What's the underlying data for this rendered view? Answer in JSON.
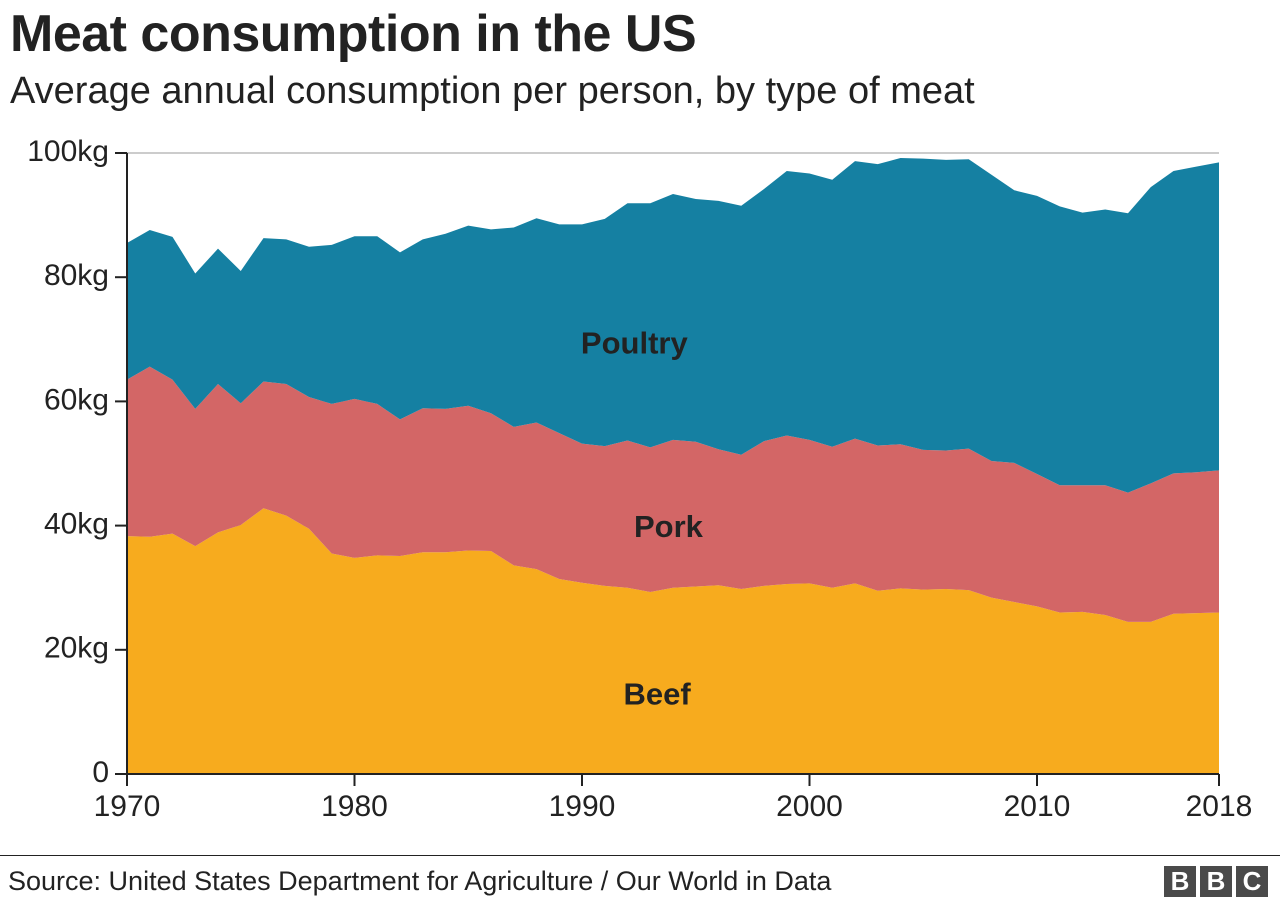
{
  "title": "Meat consumption in the US",
  "subtitle": "Average annual consumption per person, by type of meat",
  "source": "Source: United States Department for Agriculture / Our World in Data",
  "logo": [
    "B",
    "B",
    "C"
  ],
  "colors": {
    "beef": "#f7ab1e",
    "pork": "#d36666",
    "poultry": "#1580a2",
    "grid": "#cccccc",
    "axis": "#222222",
    "text": "#222222"
  },
  "chart_data": {
    "type": "area",
    "stacked": true,
    "title": "Meat consumption in the US",
    "subtitle": "Average annual consumption per person, by type of meat",
    "ylim": [
      0,
      100
    ],
    "y_ticks": [
      0,
      20,
      40,
      60,
      80,
      100
    ],
    "y_tick_labels": [
      "0",
      "20kg",
      "40kg",
      "60kg",
      "80kg",
      "100kg"
    ],
    "x_ticks": [
      1970,
      1980,
      1990,
      2000,
      2010,
      2018
    ],
    "x_tick_labels": [
      "1970",
      "1980",
      "1990",
      "2000",
      "2010",
      "2018"
    ],
    "x": [
      1970,
      1971,
      1972,
      1973,
      1974,
      1975,
      1976,
      1977,
      1978,
      1979,
      1980,
      1981,
      1982,
      1983,
      1984,
      1985,
      1986,
      1987,
      1988,
      1989,
      1990,
      1991,
      1992,
      1993,
      1994,
      1995,
      1996,
      1997,
      1998,
      1999,
      2000,
      2001,
      2002,
      2003,
      2004,
      2005,
      2006,
      2007,
      2008,
      2009,
      2010,
      2011,
      2012,
      2013,
      2014,
      2015,
      2016,
      2017,
      2018
    ],
    "series": [
      {
        "name": "Beef",
        "key": "beef",
        "values": [
          38.3,
          38.2,
          38.7,
          36.7,
          38.9,
          40.1,
          42.8,
          41.6,
          39.5,
          35.5,
          34.8,
          35.2,
          35.1,
          35.7,
          35.7,
          36.0,
          35.9,
          33.6,
          33.0,
          31.4,
          30.8,
          30.3,
          30.0,
          29.3,
          30.0,
          30.2,
          30.4,
          29.8,
          30.3,
          30.6,
          30.7,
          30.0,
          30.7,
          29.5,
          29.9,
          29.7,
          29.8,
          29.6,
          28.4,
          27.7,
          27.0,
          26.0,
          26.1,
          25.6,
          24.5,
          24.5,
          25.8,
          25.9,
          26.0
        ]
      },
      {
        "name": "Pork",
        "key": "pork",
        "values": [
          25.2,
          27.4,
          24.8,
          22.1,
          23.9,
          19.6,
          20.4,
          21.2,
          21.2,
          24.1,
          25.6,
          24.4,
          22.0,
          23.2,
          23.1,
          23.3,
          22.2,
          22.3,
          23.6,
          23.5,
          22.4,
          22.5,
          23.7,
          23.3,
          23.8,
          23.3,
          21.9,
          21.6,
          23.3,
          23.9,
          23.1,
          22.7,
          23.3,
          23.4,
          23.2,
          22.5,
          22.3,
          22.8,
          22.0,
          22.4,
          21.3,
          20.5,
          20.4,
          20.9,
          20.8,
          22.3,
          22.6,
          22.7,
          22.9
        ]
      },
      {
        "name": "Poultry",
        "key": "poultry",
        "values": [
          22.0,
          22.0,
          23.0,
          21.8,
          21.8,
          21.3,
          23.1,
          23.3,
          24.2,
          25.6,
          26.2,
          27.0,
          26.9,
          27.2,
          28.2,
          29.0,
          29.6,
          32.1,
          32.9,
          33.6,
          35.3,
          36.6,
          38.2,
          39.3,
          39.6,
          39.1,
          40.0,
          40.1,
          40.6,
          42.6,
          42.9,
          43.0,
          44.7,
          45.3,
          46.1,
          46.9,
          46.8,
          46.6,
          46.1,
          43.9,
          44.8,
          44.9,
          43.9,
          44.4,
          45.0,
          47.7,
          48.7,
          49.2,
          49.6
        ]
      }
    ],
    "area_labels": [
      "Poultry",
      "Pork",
      "Beef"
    ],
    "grid": true,
    "legend": "inline"
  }
}
